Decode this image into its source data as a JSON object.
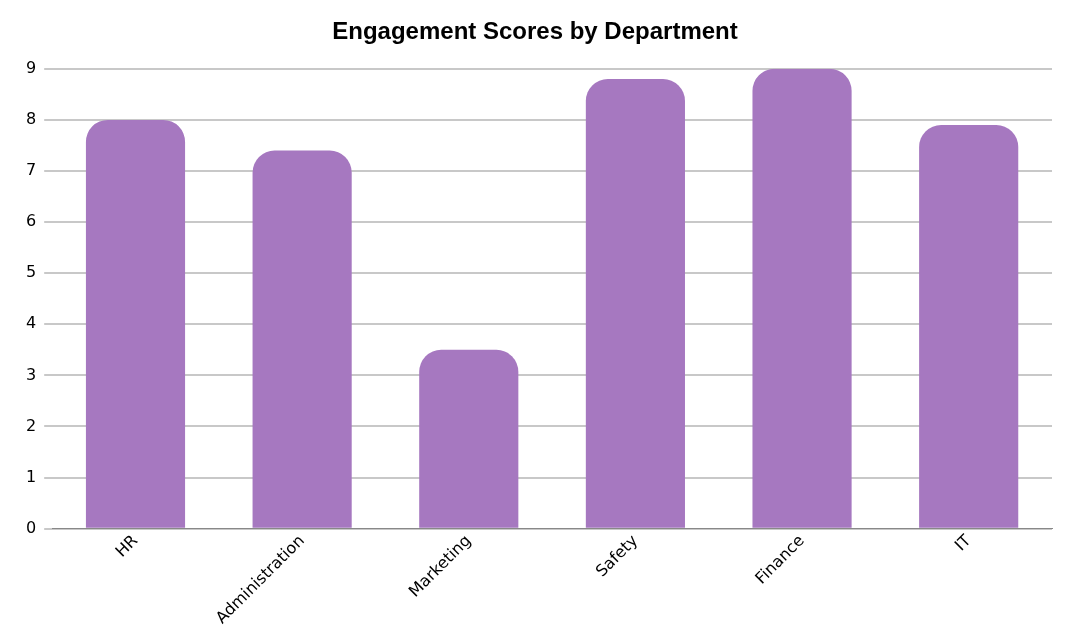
{
  "chart_data": {
    "type": "bar",
    "title": "Engagement Scores by Department",
    "categories": [
      "HR",
      "Administration",
      "Marketing",
      "Safety",
      "Finance",
      "IT"
    ],
    "values": [
      8,
      7.4,
      3.5,
      8.8,
      9,
      7.9
    ],
    "color": "#a678c0",
    "ylim": [
      0,
      9
    ],
    "yticks": [
      0,
      1,
      2,
      3,
      4,
      5,
      6,
      7,
      8,
      9
    ],
    "grid": "y",
    "legend": false
  }
}
